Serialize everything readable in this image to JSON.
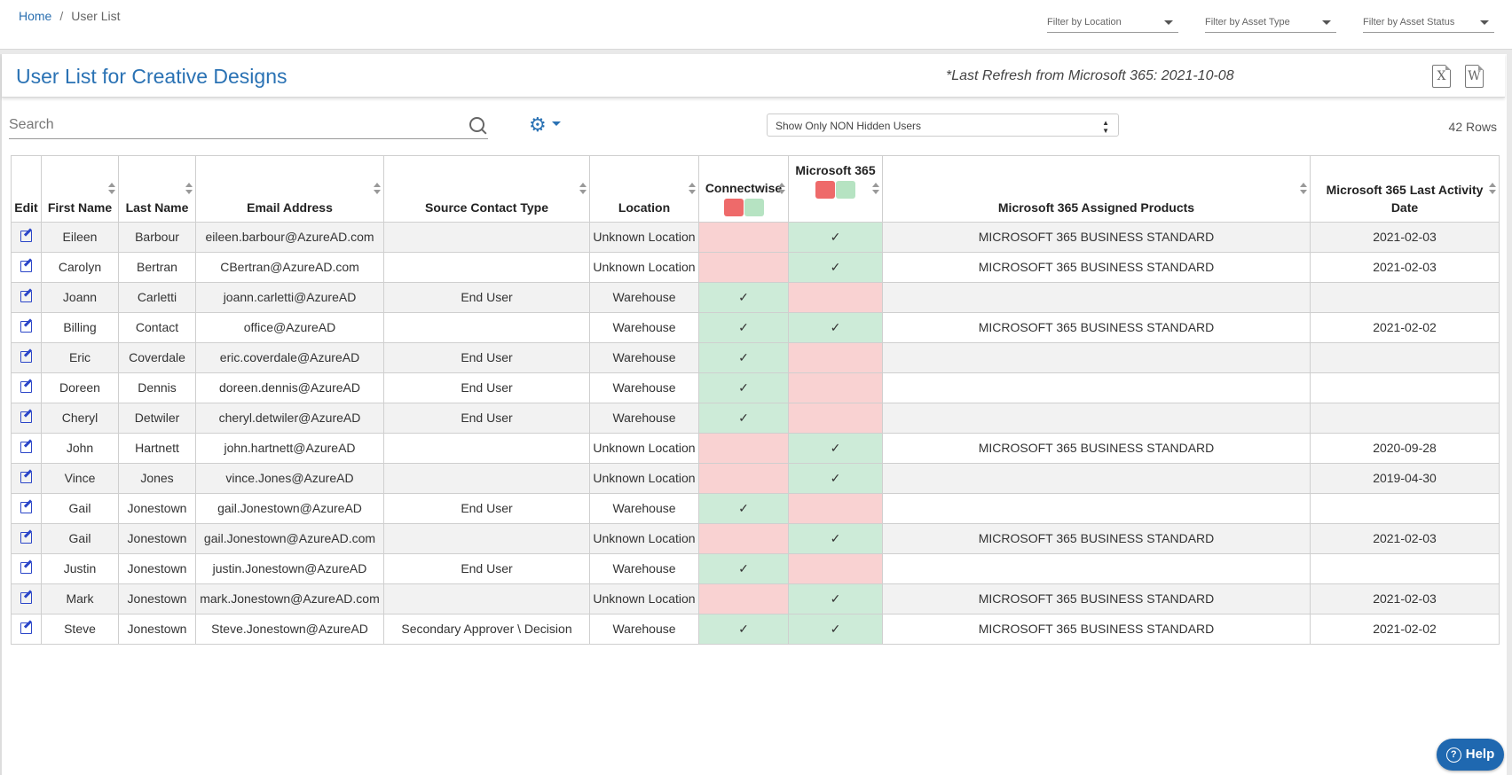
{
  "breadcrumb": {
    "home": "Home",
    "separator": "/",
    "current": "User List"
  },
  "filters": [
    {
      "label": "Filter by Location"
    },
    {
      "label": "Filter by Asset Type"
    },
    {
      "label": "Filter by Asset Status"
    }
  ],
  "page": {
    "title": "User List for Creative Designs",
    "refresh_note": "*Last Refresh from Microsoft 365: 2021-10-08",
    "export_excel_glyph": "X",
    "export_word_glyph": "W"
  },
  "toolbar": {
    "search_placeholder": "Search",
    "hidden_filter_value": "Show Only NON Hidden Users",
    "row_count": "42 Rows"
  },
  "columns": {
    "edit": "Edit",
    "first_name": "First Name",
    "last_name": "Last Name",
    "email": "Email Address",
    "source_contact_type": "Source Contact Type",
    "location": "Location",
    "connectwise": "Connectwise",
    "m365": "Microsoft 365",
    "assigned_products": "Microsoft 365 Assigned Products",
    "last_activity": "Microsoft 365 Last Activity Date"
  },
  "check_glyph": "✓",
  "status_colors": {
    "present": "#cdebd8",
    "missing": "#f9d2d2"
  },
  "rows": [
    {
      "first": "Eileen",
      "last": "Barbour",
      "email": "eileen.barbour@AzureAD.com",
      "type": "",
      "location": "Unknown Location",
      "cw": false,
      "m365": true,
      "products": "MICROSOFT 365 BUSINESS STANDARD",
      "activity": "2021-02-03"
    },
    {
      "first": "Carolyn",
      "last": "Bertran",
      "email": "CBertran@AzureAD.com",
      "type": "",
      "location": "Unknown Location",
      "cw": false,
      "m365": true,
      "products": "MICROSOFT 365 BUSINESS STANDARD",
      "activity": "2021-02-03"
    },
    {
      "first": "Joann",
      "last": "Carletti",
      "email": "joann.carletti@AzureAD",
      "type": "End User",
      "location": "Warehouse",
      "cw": true,
      "m365": false,
      "products": "",
      "activity": ""
    },
    {
      "first": "Billing",
      "last": "Contact",
      "email": "office@AzureAD",
      "type": "",
      "location": "Warehouse",
      "cw": true,
      "m365": true,
      "products": "MICROSOFT 365 BUSINESS STANDARD",
      "activity": "2021-02-02"
    },
    {
      "first": "Eric",
      "last": "Coverdale",
      "email": "eric.coverdale@AzureAD",
      "type": "End User",
      "location": "Warehouse",
      "cw": true,
      "m365": false,
      "products": "",
      "activity": ""
    },
    {
      "first": "Doreen",
      "last": "Dennis",
      "email": "doreen.dennis@AzureAD",
      "type": "End User",
      "location": "Warehouse",
      "cw": true,
      "m365": false,
      "products": "",
      "activity": ""
    },
    {
      "first": "Cheryl",
      "last": "Detwiler",
      "email": "cheryl.detwiler@AzureAD",
      "type": "End User",
      "location": "Warehouse",
      "cw": true,
      "m365": false,
      "products": "",
      "activity": ""
    },
    {
      "first": "John",
      "last": "Hartnett",
      "email": "john.hartnett@AzureAD",
      "type": "",
      "location": "Unknown Location",
      "cw": false,
      "m365": true,
      "products": "MICROSOFT 365 BUSINESS STANDARD",
      "activity": "2020-09-28"
    },
    {
      "first": "Vince",
      "last": "Jones",
      "email": "vince.Jones@AzureAD",
      "type": "",
      "location": "Unknown Location",
      "cw": false,
      "m365": true,
      "products": "",
      "activity": "2019-04-30"
    },
    {
      "first": "Gail",
      "last": "Jonestown",
      "email": "gail.Jonestown@AzureAD",
      "type": "End User",
      "location": "Warehouse",
      "cw": true,
      "m365": false,
      "products": "",
      "activity": ""
    },
    {
      "first": "Gail",
      "last": "Jonestown",
      "email": "gail.Jonestown@AzureAD.com",
      "type": "",
      "location": "Unknown Location",
      "cw": false,
      "m365": true,
      "products": "MICROSOFT 365 BUSINESS STANDARD",
      "activity": "2021-02-03"
    },
    {
      "first": "Justin",
      "last": "Jonestown",
      "email": "justin.Jonestown@AzureAD",
      "type": "End User",
      "location": "Warehouse",
      "cw": true,
      "m365": false,
      "products": "",
      "activity": ""
    },
    {
      "first": "Mark",
      "last": "Jonestown",
      "email": "mark.Jonestown@AzureAD.com",
      "type": "",
      "location": "Unknown Location",
      "cw": false,
      "m365": true,
      "products": "MICROSOFT 365 BUSINESS STANDARD",
      "activity": "2021-02-03"
    },
    {
      "first": "Steve",
      "last": "Jonestown",
      "email": "Steve.Jonestown@AzureAD",
      "type": "Secondary Approver \\ Decision",
      "location": "Warehouse",
      "cw": true,
      "m365": true,
      "products": "MICROSOFT 365 BUSINESS STANDARD",
      "activity": "2021-02-02"
    }
  ],
  "help": {
    "label": "Help",
    "icon": "?"
  }
}
